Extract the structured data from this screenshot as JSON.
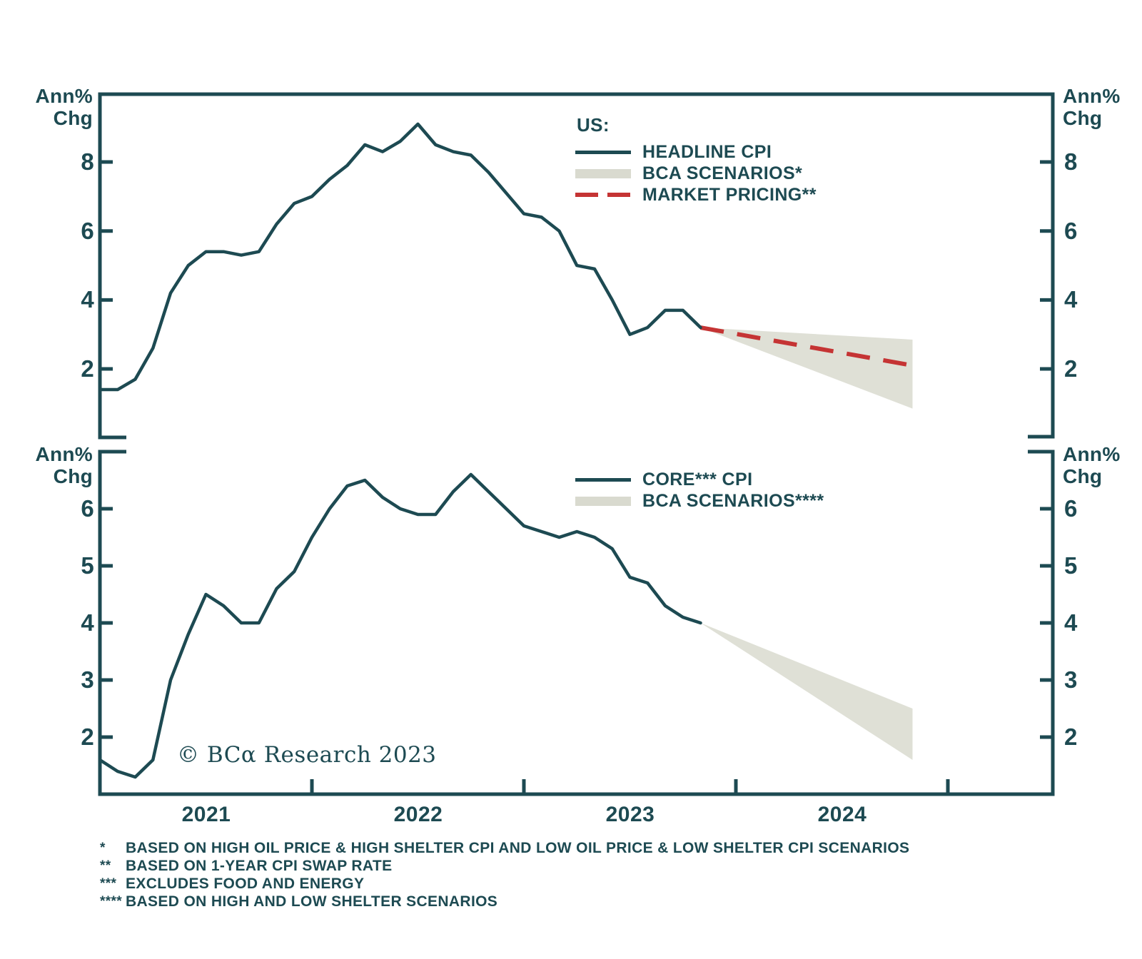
{
  "copyright": "© BCα Research 2023",
  "colors": {
    "teal": "#1d4a52",
    "red": "#c53434",
    "band": "#dfe0d6",
    "band_legend": "#d9dacf",
    "background": "#ffffff"
  },
  "panels": {
    "top": {
      "y_axis_label": {
        "line1": "Ann%",
        "line2": "Chg"
      },
      "ticks": [
        "8",
        "6",
        "4",
        "2"
      ],
      "legend": {
        "group_label": "US:",
        "items": [
          {
            "label": "HEADLINE CPI",
            "swatch": "line"
          },
          {
            "label": "BCA SCENARIOS*",
            "swatch": "band"
          },
          {
            "label": "MARKET PRICING**",
            "swatch": "dashed"
          }
        ]
      }
    },
    "bottom": {
      "y_axis_label": {
        "line1": "Ann%",
        "line2": "Chg"
      },
      "ticks": [
        "6",
        "5",
        "4",
        "3",
        "2"
      ],
      "legend": {
        "group_label": "",
        "items": [
          {
            "label": "CORE*** CPI",
            "swatch": "line"
          },
          {
            "label": "BCA SCENARIOS****",
            "swatch": "band"
          }
        ]
      }
    }
  },
  "x_axis": {
    "years": [
      "2021",
      "2022",
      "2023",
      "2024"
    ]
  },
  "footnotes": [
    {
      "marker": "*",
      "text": "BASED ON HIGH OIL PRICE & HIGH SHELTER CPI AND LOW OIL PRICE & LOW SHELTER CPI SCENARIOS"
    },
    {
      "marker": "**",
      "text": "BASED ON 1-YEAR CPI SWAP RATE"
    },
    {
      "marker": "***",
      "text": "EXCLUDES FOOD AND ENERGY"
    },
    {
      "marker": "****",
      "text": "BASED ON HIGH AND LOW SHELTER SCENARIOS"
    }
  ],
  "chart_data": [
    {
      "type": "line",
      "panel": "top",
      "name": "US Headline CPI",
      "ylabel": "Ann% Chg",
      "yticks": [
        2,
        4,
        6,
        8
      ],
      "ylim": [
        0.8,
        10.0
      ],
      "x": [
        "2020-12",
        "2021-01",
        "2021-02",
        "2021-03",
        "2021-04",
        "2021-05",
        "2021-06",
        "2021-07",
        "2021-08",
        "2021-09",
        "2021-10",
        "2021-11",
        "2021-12",
        "2022-01",
        "2022-02",
        "2022-03",
        "2022-04",
        "2022-05",
        "2022-06",
        "2022-07",
        "2022-08",
        "2022-09",
        "2022-10",
        "2022-11",
        "2022-12",
        "2023-01",
        "2023-02",
        "2023-03",
        "2023-04",
        "2023-05",
        "2023-06",
        "2023-07",
        "2023-08",
        "2023-09",
        "2023-10"
      ],
      "values": [
        1.4,
        1.4,
        1.7,
        2.6,
        4.2,
        5.0,
        5.4,
        5.4,
        5.3,
        5.4,
        6.2,
        6.8,
        7.0,
        7.5,
        7.9,
        8.5,
        8.3,
        8.6,
        9.1,
        8.5,
        8.3,
        8.2,
        7.7,
        7.1,
        6.5,
        6.4,
        6.0,
        5.0,
        4.9,
        4.0,
        3.0,
        3.2,
        3.7,
        3.7,
        3.2
      ],
      "scenario_fan": {
        "label": "BCA SCENARIOS*",
        "start": "2023-10",
        "start_value": 3.2,
        "end": "2024-10",
        "end_high": 2.85,
        "end_low": 0.85
      },
      "market_pricing": {
        "label": "MARKET PRICING**",
        "style": "dashed-red",
        "start": "2023-10",
        "start_value": 3.2,
        "end": "2024-10",
        "end_value": 2.1
      }
    },
    {
      "type": "line",
      "panel": "bottom",
      "name": "US Core CPI (excludes food and energy)",
      "ylabel": "Ann% Chg",
      "yticks": [
        2,
        3,
        4,
        5,
        6
      ],
      "ylim": [
        1.0,
        7.0
      ],
      "x": [
        "2020-12",
        "2021-01",
        "2021-02",
        "2021-03",
        "2021-04",
        "2021-05",
        "2021-06",
        "2021-07",
        "2021-08",
        "2021-09",
        "2021-10",
        "2021-11",
        "2021-12",
        "2022-01",
        "2022-02",
        "2022-03",
        "2022-04",
        "2022-05",
        "2022-06",
        "2022-07",
        "2022-08",
        "2022-09",
        "2022-10",
        "2022-11",
        "2022-12",
        "2023-01",
        "2023-02",
        "2023-03",
        "2023-04",
        "2023-05",
        "2023-06",
        "2023-07",
        "2023-08",
        "2023-09",
        "2023-10"
      ],
      "values": [
        1.6,
        1.4,
        1.3,
        1.6,
        3.0,
        3.8,
        4.5,
        4.3,
        4.0,
        4.0,
        4.6,
        4.9,
        5.5,
        6.0,
        6.4,
        6.5,
        6.2,
        6.0,
        5.9,
        5.9,
        6.3,
        6.6,
        6.3,
        6.0,
        5.7,
        5.6,
        5.5,
        5.6,
        5.5,
        5.3,
        4.8,
        4.7,
        4.3,
        4.1,
        4.0
      ],
      "scenario_fan": {
        "label": "BCA SCENARIOS****",
        "start": "2023-10",
        "start_value": 4.0,
        "end": "2024-10",
        "end_high": 2.5,
        "end_low": 1.6
      }
    }
  ]
}
